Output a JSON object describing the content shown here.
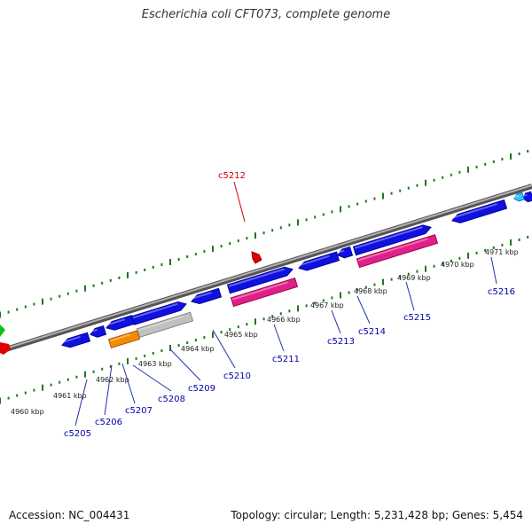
{
  "title": "Escherichia coli CFT073, complete genome",
  "footer": {
    "accession": "Accession: NC_004431",
    "summary": "Topology: circular; Length: 5,231,428 bp; Genes: 5,454"
  },
  "colors": {
    "forward_gene": "#1010e0",
    "reverse_gene": "#1010e0",
    "rna_pink": "#e0208a",
    "orange": "#f08c00",
    "gray_pseudo": "#c0c0c0",
    "red_feature": "#e00000",
    "green_feature": "#10c010",
    "cyan_feature": "#40c0ff",
    "tick_green": "#1a7a1a",
    "backbone": "#808080",
    "label_blue": "#0000aa",
    "label_red": "#cc0000"
  },
  "scale_labels": [
    "4960 kbp",
    "4961 kbp",
    "4962 kbp",
    "4963 kbp",
    "4964 kbp",
    "4965 kbp",
    "4966 kbp",
    "4967 kbp",
    "4968 kbp",
    "4969 kbp",
    "4970 kbp",
    "4971 kbp"
  ],
  "gene_labels": [
    "c5205",
    "c5206",
    "c5207",
    "c5208",
    "c5209",
    "c5210",
    "c5211",
    "c5212",
    "c5213",
    "c5214",
    "c5215",
    "c5216"
  ]
}
